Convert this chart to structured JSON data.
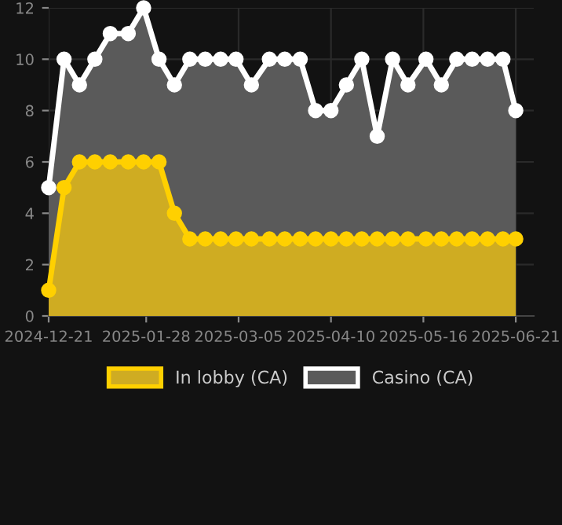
{
  "chart_data": {
    "type": "area",
    "x": [
      "2024-12-21",
      "2024-12-27",
      "2025-01-02",
      "2025-01-08",
      "2025-01-14",
      "2025-01-21",
      "2025-01-27",
      "2025-02-02",
      "2025-02-08",
      "2025-02-14",
      "2025-02-20",
      "2025-02-26",
      "2025-03-04",
      "2025-03-10",
      "2025-03-17",
      "2025-03-23",
      "2025-03-29",
      "2025-04-04",
      "2025-04-10",
      "2025-04-16",
      "2025-04-22",
      "2025-04-28",
      "2025-05-04",
      "2025-05-10",
      "2025-05-17",
      "2025-05-23",
      "2025-05-29",
      "2025-06-04",
      "2025-06-10",
      "2025-06-16",
      "2025-06-21"
    ],
    "series": [
      {
        "name": "Casino (CA)",
        "color": "#ffffff",
        "values": [
          5,
          10,
          9,
          10,
          11,
          11,
          12,
          10,
          9,
          10,
          10,
          10,
          10,
          9,
          10,
          10,
          10,
          8,
          8,
          9,
          10,
          7,
          10,
          9,
          10,
          9,
          10,
          10,
          10,
          10,
          8
        ]
      },
      {
        "name": "In lobby (CA)",
        "color": "#ffd000",
        "values": [
          1,
          5,
          6,
          6,
          6,
          6,
          6,
          6,
          4,
          3,
          3,
          3,
          3,
          3,
          3,
          3,
          3,
          3,
          3,
          3,
          3,
          3,
          3,
          3,
          3,
          3,
          3,
          3,
          3,
          3,
          3
        ]
      }
    ],
    "xlim": [
      "2024-12-21",
      "2025-06-28"
    ],
    "xticks": [
      "2024-12-21",
      "2025-01-28",
      "2025-03-05",
      "2025-04-10",
      "2025-05-16",
      "2025-06-21"
    ],
    "ylim": [
      0,
      12
    ],
    "yticks": [
      0,
      2,
      4,
      6,
      8,
      10,
      12
    ],
    "grid": true,
    "legend": "bottom",
    "marker": "circle",
    "line_style": "solid"
  }
}
